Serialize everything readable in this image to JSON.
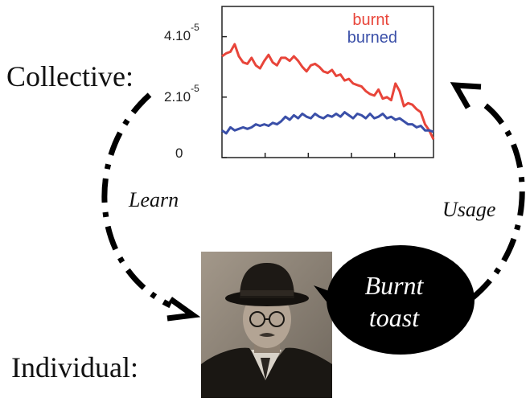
{
  "labels": {
    "collective": "Collective:",
    "individual": "Individual:",
    "learn": "Learn",
    "usage": "Usage"
  },
  "speech_bubble": {
    "line1": "Burnt",
    "line2": "toast"
  },
  "portrait": {
    "icon": "man-in-hat-portrait-icon"
  },
  "colors": {
    "burnt": "#e8453a",
    "burned": "#3a4fa8",
    "axis": "#222222",
    "bubble": "#000000"
  },
  "chart_data": {
    "type": "line",
    "y_tick_labels": [
      {
        "value": 4e-05,
        "base": "4.10",
        "exp": "-5"
      },
      {
        "value": 2e-05,
        "base": "2.10",
        "exp": "-5"
      },
      {
        "value": 0,
        "base": "0",
        "exp": ""
      }
    ],
    "ylim": [
      0,
      5e-05
    ],
    "xlim": [
      0,
      49
    ],
    "x_ticks": [
      10,
      20,
      30,
      40
    ],
    "grid": false,
    "legend_position": "top-right",
    "series": [
      {
        "name": "burnt",
        "color": "#e8453a",
        "values": [
          3.35e-05,
          3.45e-05,
          3.5e-05,
          3.75e-05,
          3.35e-05,
          3.15e-05,
          3.1e-05,
          3.3e-05,
          3.05e-05,
          2.95e-05,
          3.2e-05,
          3.4e-05,
          3.15e-05,
          3.05e-05,
          3.3e-05,
          3.3e-05,
          3.2e-05,
          3.35e-05,
          3.2e-05,
          3e-05,
          2.85e-05,
          3.05e-05,
          3.1e-05,
          3e-05,
          2.85e-05,
          2.8e-05,
          2.9e-05,
          2.7e-05,
          2.75e-05,
          2.55e-05,
          2.6e-05,
          2.45e-05,
          2.4e-05,
          2.35e-05,
          2.2e-05,
          2.1e-05,
          2.05e-05,
          2.25e-05,
          1.95e-05,
          2e-05,
          1.9e-05,
          2.45e-05,
          2.2e-05,
          1.7e-05,
          1.8e-05,
          1.75e-05,
          1.6e-05,
          1.5e-05,
          1.1e-05,
          9e-06,
          6e-06
        ]
      },
      {
        "name": "burned",
        "color": "#3a4fa8",
        "values": [
          9e-06,
          8e-06,
          1e-05,
          9e-06,
          9.5e-06,
          1e-05,
          9.5e-06,
          1e-05,
          1.1e-05,
          1.05e-05,
          1.1e-05,
          1.05e-05,
          1.15e-05,
          1.1e-05,
          1.2e-05,
          1.35e-05,
          1.25e-05,
          1.4e-05,
          1.3e-05,
          1.45e-05,
          1.35e-05,
          1.3e-05,
          1.45e-05,
          1.35e-05,
          1.3e-05,
          1.4e-05,
          1.35e-05,
          1.45e-05,
          1.35e-05,
          1.5e-05,
          1.4e-05,
          1.3e-05,
          1.45e-05,
          1.4e-05,
          1.3e-05,
          1.45e-05,
          1.3e-05,
          1.35e-05,
          1.45e-05,
          1.3e-05,
          1.35e-05,
          1.25e-05,
          1.3e-05,
          1.2e-05,
          1.1e-05,
          1.1e-05,
          1e-05,
          1.05e-05,
          9e-06,
          9e-06,
          8.5e-06
        ]
      }
    ]
  }
}
